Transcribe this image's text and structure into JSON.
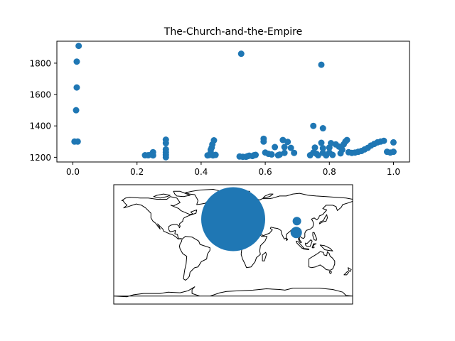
{
  "chart_data": [
    {
      "type": "scatter",
      "title": "The-Church-and-the-Empire",
      "xlim": [
        -0.05,
        1.05
      ],
      "ylim": [
        1170,
        1940
      ],
      "x_ticks": [
        0.0,
        0.2,
        0.4,
        0.6,
        0.8,
        1.0
      ],
      "x_tick_labels": [
        "0.0",
        "0.2",
        "0.4",
        "0.6",
        "0.8",
        "1.0"
      ],
      "y_ticks": [
        1200,
        1400,
        1600,
        1800
      ],
      "y_tick_labels": [
        "1200",
        "1400",
        "1600",
        "1800"
      ],
      "grid": false,
      "color": "#1f77b4",
      "points": [
        [
          0.005,
          1300
        ],
        [
          0.015,
          1300
        ],
        [
          0.01,
          1500
        ],
        [
          0.012,
          1645
        ],
        [
          0.012,
          1810
        ],
        [
          0.018,
          1910
        ],
        [
          0.225,
          1213
        ],
        [
          0.235,
          1213
        ],
        [
          0.245,
          1218
        ],
        [
          0.25,
          1232
        ],
        [
          0.25,
          1212
        ],
        [
          0.29,
          1200
        ],
        [
          0.29,
          1215
        ],
        [
          0.29,
          1232
        ],
        [
          0.29,
          1250
        ],
        [
          0.29,
          1290
        ],
        [
          0.29,
          1312
        ],
        [
          0.42,
          1212
        ],
        [
          0.425,
          1214
        ],
        [
          0.43,
          1230
        ],
        [
          0.43,
          1248
        ],
        [
          0.433,
          1262
        ],
        [
          0.435,
          1282
        ],
        [
          0.437,
          1212
        ],
        [
          0.44,
          1308
        ],
        [
          0.445,
          1215
        ],
        [
          0.525,
          1860
        ],
        [
          0.52,
          1205
        ],
        [
          0.53,
          1203
        ],
        [
          0.54,
          1203
        ],
        [
          0.545,
          1207
        ],
        [
          0.55,
          1210
        ],
        [
          0.56,
          1208
        ],
        [
          0.565,
          1213
        ],
        [
          0.57,
          1215
        ],
        [
          0.595,
          1300
        ],
        [
          0.595,
          1318
        ],
        [
          0.6,
          1230
        ],
        [
          0.61,
          1222
        ],
        [
          0.62,
          1218
        ],
        [
          0.63,
          1265
        ],
        [
          0.64,
          1213
        ],
        [
          0.645,
          1217
        ],
        [
          0.655,
          1310
        ],
        [
          0.66,
          1265
        ],
        [
          0.66,
          1228
        ],
        [
          0.67,
          1298
        ],
        [
          0.68,
          1260
        ],
        [
          0.69,
          1228
        ],
        [
          0.74,
          1213
        ],
        [
          0.75,
          1400
        ],
        [
          0.75,
          1230
        ],
        [
          0.755,
          1262
        ],
        [
          0.76,
          1222
        ],
        [
          0.765,
          1213
        ],
        [
          0.775,
          1790
        ],
        [
          0.78,
          1385
        ],
        [
          0.775,
          1292
        ],
        [
          0.78,
          1258
        ],
        [
          0.78,
          1228
        ],
        [
          0.79,
          1212
        ],
        [
          0.8,
          1262
        ],
        [
          0.8,
          1230
        ],
        [
          0.805,
          1290
        ],
        [
          0.81,
          1215
        ],
        [
          0.82,
          1282
        ],
        [
          0.83,
          1268
        ],
        [
          0.835,
          1225
        ],
        [
          0.84,
          1248
        ],
        [
          0.845,
          1283
        ],
        [
          0.85,
          1300
        ],
        [
          0.855,
          1310
        ],
        [
          0.86,
          1232
        ],
        [
          0.87,
          1228
        ],
        [
          0.88,
          1230
        ],
        [
          0.89,
          1235
        ],
        [
          0.9,
          1240
        ],
        [
          0.91,
          1250
        ],
        [
          0.92,
          1260
        ],
        [
          0.93,
          1275
        ],
        [
          0.94,
          1285
        ],
        [
          0.95,
          1295
        ],
        [
          0.96,
          1300
        ],
        [
          0.97,
          1305
        ],
        [
          0.98,
          1235
        ],
        [
          0.99,
          1230
        ],
        [
          1.0,
          1235
        ],
        [
          1.0,
          1295
        ]
      ]
    },
    {
      "type": "map",
      "projection": "equirectangular",
      "extent": {
        "lon": [
          -180,
          180
        ],
        "lat": [
          -90,
          90
        ]
      },
      "color": "#1f77b4",
      "markers": [
        {
          "lon": 0,
          "lat": 38,
          "size": 45
        },
        {
          "lon": 96,
          "lat": 35,
          "size": 6
        },
        {
          "lon": 95,
          "lat": 18,
          "size": 8
        }
      ]
    }
  ]
}
